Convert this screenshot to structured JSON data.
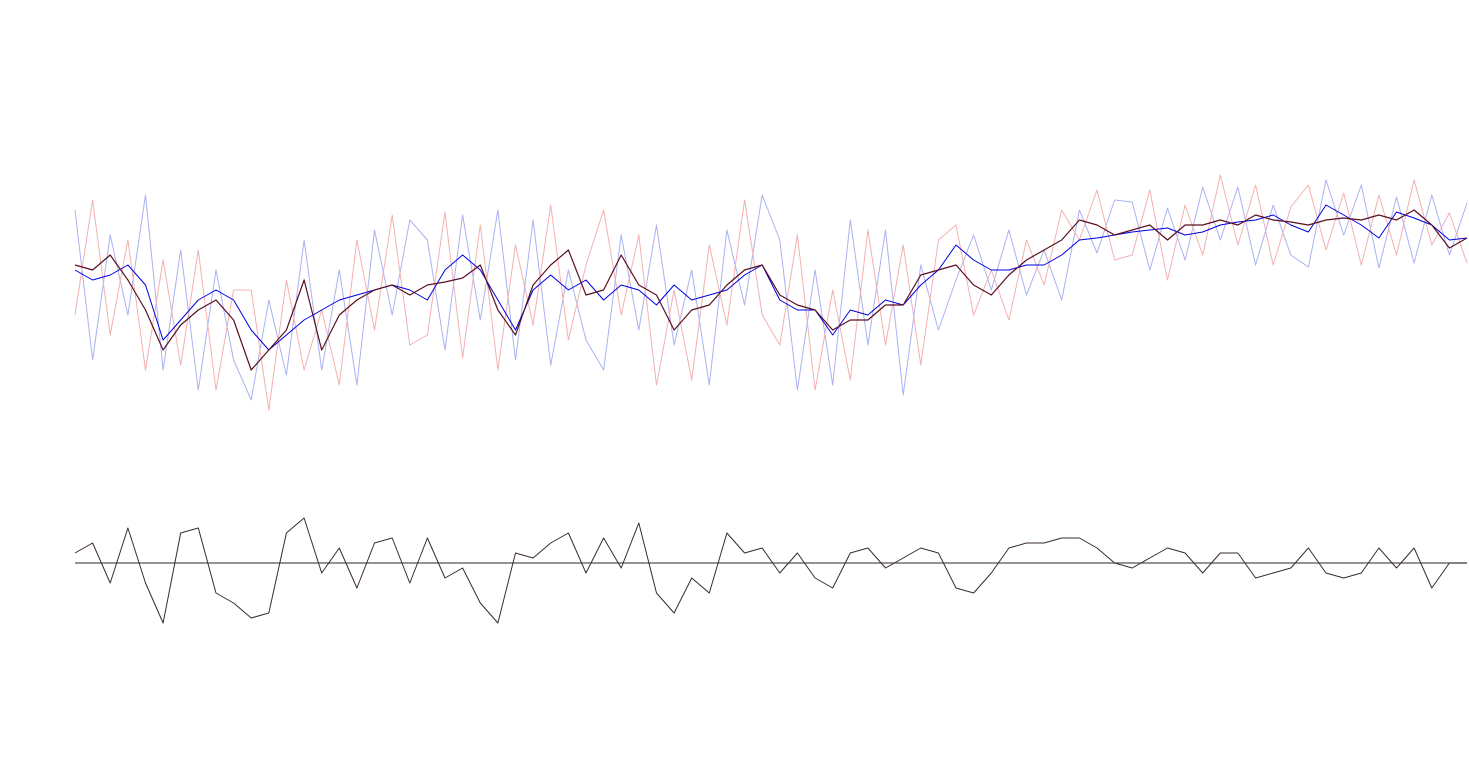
{
  "chart_data": [
    {
      "type": "line",
      "ylim": [
        0,
        400
      ],
      "series": [
        {
          "color": "#aab2f2",
          "width": 1,
          "values": [
            300,
            150,
            275,
            195,
            315,
            140,
            260,
            120,
            240,
            150,
            110,
            210,
            135,
            270,
            140,
            240,
            125,
            280,
            195,
            290,
            270,
            160,
            295,
            190,
            300,
            150,
            290,
            145,
            240,
            170,
            140,
            275,
            180,
            285,
            165,
            240,
            125,
            280,
            205,
            315,
            270,
            120,
            240,
            125,
            290,
            165,
            280,
            115,
            245,
            180,
            230,
            275,
            220,
            280,
            215,
            260,
            210,
            300,
            257,
            310,
            308,
            240,
            302,
            250,
            323,
            270,
            323,
            245,
            305,
            255,
            243,
            330,
            275,
            325,
            242,
            313,
            247,
            315,
            255,
            307
          ]
        },
        {
          "color": "#f4b0b0",
          "width": 1,
          "values": [
            195,
            310,
            175,
            270,
            140,
            250,
            145,
            260,
            120,
            220,
            220,
            100,
            230,
            140,
            200,
            125,
            270,
            180,
            295,
            165,
            175,
            298,
            152,
            285,
            140,
            265,
            185,
            305,
            170,
            245,
            300,
            195,
            275,
            125,
            220,
            130,
            265,
            185,
            310,
            195,
            165,
            275,
            120,
            220,
            130,
            280,
            165,
            265,
            145,
            270,
            285,
            195,
            240,
            190,
            270,
            225,
            300,
            270,
            320,
            250,
            255,
            320,
            230,
            305,
            255,
            335,
            265,
            325,
            245,
            303,
            325,
            260,
            317,
            245,
            315,
            255,
            330,
            265,
            297,
            247
          ]
        },
        {
          "color": "#0000e0",
          "width": 1,
          "values": [
            240,
            230,
            235,
            245,
            225,
            170,
            190,
            210,
            220,
            210,
            180,
            160,
            175,
            190,
            200,
            210,
            215,
            220,
            225,
            220,
            210,
            240,
            255,
            240,
            210,
            180,
            220,
            235,
            220,
            230,
            210,
            225,
            220,
            205,
            225,
            210,
            215,
            220,
            235,
            245,
            210,
            200,
            200,
            175,
            200,
            195,
            210,
            205,
            225,
            240,
            265,
            250,
            240,
            240,
            245,
            245,
            255,
            270,
            272,
            275,
            278,
            280,
            282,
            275,
            278,
            285,
            288,
            290,
            295,
            285,
            278,
            305,
            295,
            285,
            272,
            298,
            292,
            285,
            270,
            272
          ]
        },
        {
          "color": "#5a1020",
          "width": 1.2,
          "values": [
            245,
            240,
            255,
            230,
            200,
            160,
            185,
            200,
            210,
            190,
            140,
            160,
            180,
            230,
            160,
            195,
            210,
            220,
            225,
            215,
            225,
            228,
            232,
            245,
            200,
            175,
            225,
            245,
            260,
            215,
            220,
            255,
            225,
            215,
            180,
            200,
            205,
            225,
            240,
            245,
            215,
            205,
            200,
            180,
            190,
            190,
            205,
            205,
            235,
            240,
            245,
            225,
            215,
            235,
            250,
            260,
            270,
            290,
            285,
            275,
            280,
            285,
            270,
            285,
            285,
            290,
            285,
            295,
            290,
            288,
            285,
            290,
            292,
            290,
            295,
            290,
            300,
            285,
            262,
            272
          ]
        }
      ]
    },
    {
      "type": "line",
      "ylim": [
        -80,
        80
      ],
      "axhline": 0,
      "axhline_color": "#555555",
      "series": [
        {
          "color": "#3a2a35",
          "width": 1,
          "values": [
            10,
            20,
            -20,
            35,
            -20,
            -60,
            30,
            35,
            -30,
            -40,
            -55,
            -50,
            30,
            45,
            -10,
            15,
            -25,
            20,
            25,
            -20,
            25,
            -15,
            -5,
            -40,
            -60,
            10,
            5,
            20,
            30,
            -10,
            25,
            -5,
            40,
            -30,
            -50,
            -15,
            -30,
            30,
            10,
            15,
            -10,
            10,
            -15,
            -25,
            10,
            15,
            -5,
            5,
            15,
            10,
            -25,
            -30,
            -10,
            15,
            20,
            20,
            25,
            25,
            15,
            0,
            -5,
            5,
            15,
            10,
            -10,
            10,
            10,
            -15,
            -10,
            -5,
            15,
            -10,
            -15,
            -10,
            15,
            -5,
            15,
            -25,
            0,
            0
          ]
        }
      ]
    }
  ]
}
